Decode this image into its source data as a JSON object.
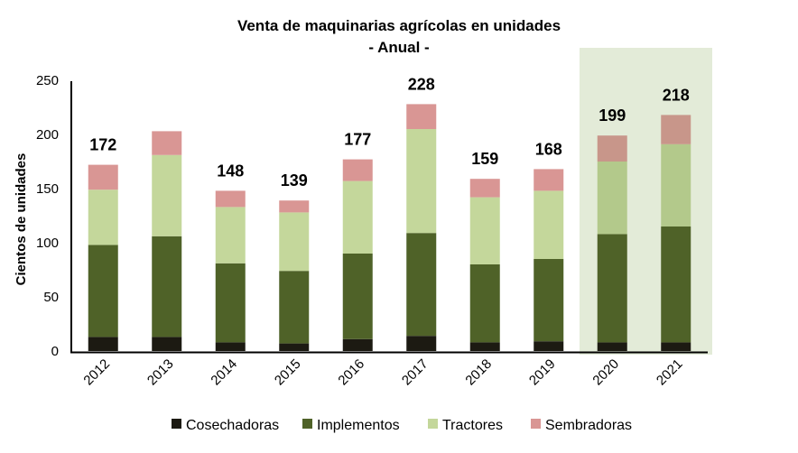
{
  "chart_data": {
    "type": "bar",
    "stacked": true,
    "title": "Venta de maquinarias agrícolas en unidades",
    "subtitle": "- Anual -",
    "xlabel": "",
    "ylabel": "Cientos de unidades",
    "ylim": [
      0,
      250
    ],
    "yticks": [
      0,
      50,
      100,
      150,
      200,
      250
    ],
    "grid": false,
    "legend_position": "bottom",
    "categories": [
      "2012",
      "2013",
      "2014",
      "2015",
      "2016",
      "2017",
      "2018",
      "2019",
      "2020",
      "2021"
    ],
    "highlight_categories": [
      "2020",
      "2021"
    ],
    "highlight_color": "#e3ebd8",
    "series": [
      {
        "name": "Cosechadoras",
        "color": "#1c1a12",
        "values": [
          13,
          13,
          8,
          7,
          11,
          14,
          8,
          9,
          8,
          8
        ]
      },
      {
        "name": "Implementos",
        "color": "#4f6228",
        "values": [
          85,
          93,
          73,
          67,
          79,
          95,
          72,
          76,
          100,
          107
        ]
      },
      {
        "name": "Tractores",
        "color": "#c4d79b",
        "values": [
          51,
          75,
          52,
          54,
          67,
          96,
          62,
          63,
          67,
          76
        ]
      },
      {
        "name": "Sembradoras",
        "color": "#d99694",
        "values": [
          23,
          22,
          15,
          11,
          20,
          23,
          17,
          20,
          24,
          27
        ]
      }
    ],
    "highlight_series_colors": {
      "Tractores": "#b3c98b",
      "Sembradoras": "#c8968a"
    },
    "totals": [
      "172",
      "",
      "148",
      "139",
      "177",
      "228",
      "159",
      "168",
      "199",
      "218"
    ]
  }
}
